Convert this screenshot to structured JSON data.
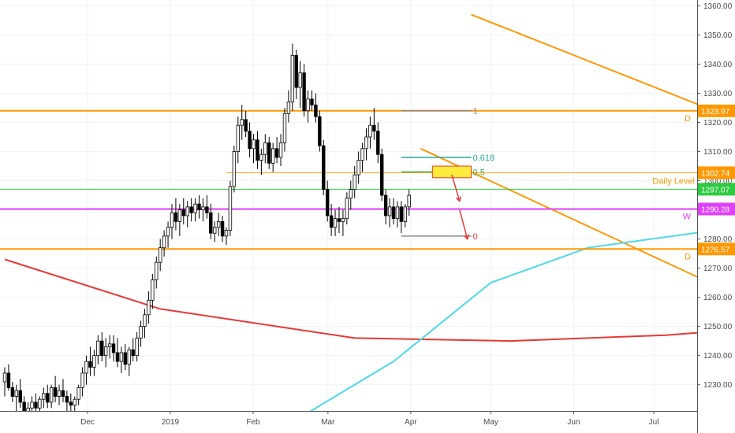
{
  "chart_data": {
    "type": "candlestick",
    "y_axis": {
      "range": [
        1221,
        1362
      ],
      "ticks": [
        "1230.00",
        "1240.00",
        "1250.00",
        "1260.00",
        "1270.00",
        "1280.00",
        "1290.00",
        "1300.00",
        "1310.00",
        "1320.00",
        "1330.00",
        "1340.00",
        "1350.00",
        "1360.00"
      ]
    },
    "x_axis": {
      "labels": [
        {
          "text": "Dec",
          "day": 31
        },
        {
          "text": "2019",
          "day": 62
        },
        {
          "text": "Feb",
          "day": 93
        },
        {
          "text": "Mar",
          "day": 121
        },
        {
          "text": "Apr",
          "day": 152
        },
        {
          "text": "May",
          "day": 182
        },
        {
          "text": "Jun",
          "day": 213
        },
        {
          "text": "Jul",
          "day": 243
        }
      ]
    },
    "horizontal_levels": [
      {
        "value": 1323.97,
        "label": "1323.97",
        "color": "#ff9800",
        "tag": "D"
      },
      {
        "value": 1302.74,
        "label": "1302.74",
        "color": "#ff9800",
        "note": "Daily Level"
      },
      {
        "value": 1297.07,
        "label": "1297.07",
        "color": "#2ecc40"
      },
      {
        "value": 1290.28,
        "label": "1290.28",
        "color": "#e040fb",
        "tag": "W"
      },
      {
        "value": 1276.57,
        "label": "1276.57",
        "color": "#ff9800",
        "tag": "D"
      }
    ],
    "fibonacci": [
      {
        "label": "1",
        "value": 1324
      },
      {
        "label": "0.618",
        "value": 1308
      },
      {
        "label": "0.5",
        "value": 1303
      },
      {
        "label": "0",
        "value": 1281
      }
    ],
    "candles": [
      {
        "o": 1231,
        "h": 1236,
        "l": 1226,
        "c": 1234
      },
      {
        "o": 1234,
        "h": 1237,
        "l": 1228,
        "c": 1229
      },
      {
        "o": 1229,
        "h": 1231,
        "l": 1224,
        "c": 1226
      },
      {
        "o": 1226,
        "h": 1230,
        "l": 1221,
        "c": 1228
      },
      {
        "o": 1228,
        "h": 1232,
        "l": 1222,
        "c": 1224
      },
      {
        "o": 1224,
        "h": 1226,
        "l": 1218,
        "c": 1220
      },
      {
        "o": 1220,
        "h": 1224,
        "l": 1216,
        "c": 1222
      },
      {
        "o": 1222,
        "h": 1226,
        "l": 1219,
        "c": 1224
      },
      {
        "o": 1224,
        "h": 1227,
        "l": 1220,
        "c": 1222
      },
      {
        "o": 1222,
        "h": 1226,
        "l": 1219,
        "c": 1225
      },
      {
        "o": 1225,
        "h": 1229,
        "l": 1222,
        "c": 1227
      },
      {
        "o": 1227,
        "h": 1230,
        "l": 1222,
        "c": 1224
      },
      {
        "o": 1224,
        "h": 1230,
        "l": 1222,
        "c": 1229
      },
      {
        "o": 1229,
        "h": 1233,
        "l": 1224,
        "c": 1226
      },
      {
        "o": 1226,
        "h": 1230,
        "l": 1223,
        "c": 1228
      },
      {
        "o": 1228,
        "h": 1232,
        "l": 1224,
        "c": 1226
      },
      {
        "o": 1226,
        "h": 1228,
        "l": 1221,
        "c": 1224
      },
      {
        "o": 1224,
        "h": 1227,
        "l": 1220,
        "c": 1223
      },
      {
        "o": 1223,
        "h": 1226,
        "l": 1220,
        "c": 1225
      },
      {
        "o": 1225,
        "h": 1230,
        "l": 1223,
        "c": 1229
      },
      {
        "o": 1229,
        "h": 1236,
        "l": 1226,
        "c": 1234
      },
      {
        "o": 1234,
        "h": 1240,
        "l": 1230,
        "c": 1238
      },
      {
        "o": 1238,
        "h": 1243,
        "l": 1233,
        "c": 1236
      },
      {
        "o": 1236,
        "h": 1242,
        "l": 1233,
        "c": 1240
      },
      {
        "o": 1240,
        "h": 1247,
        "l": 1237,
        "c": 1245
      },
      {
        "o": 1245,
        "h": 1248,
        "l": 1238,
        "c": 1240
      },
      {
        "o": 1240,
        "h": 1246,
        "l": 1236,
        "c": 1243
      },
      {
        "o": 1243,
        "h": 1247,
        "l": 1239,
        "c": 1244
      },
      {
        "o": 1244,
        "h": 1247,
        "l": 1238,
        "c": 1241
      },
      {
        "o": 1241,
        "h": 1246,
        "l": 1236,
        "c": 1238
      },
      {
        "o": 1238,
        "h": 1243,
        "l": 1234,
        "c": 1241
      },
      {
        "o": 1241,
        "h": 1244,
        "l": 1235,
        "c": 1237
      },
      {
        "o": 1237,
        "h": 1243,
        "l": 1233,
        "c": 1242
      },
      {
        "o": 1242,
        "h": 1246,
        "l": 1238,
        "c": 1240
      },
      {
        "o": 1240,
        "h": 1248,
        "l": 1238,
        "c": 1246
      },
      {
        "o": 1246,
        "h": 1252,
        "l": 1243,
        "c": 1250
      },
      {
        "o": 1250,
        "h": 1256,
        "l": 1246,
        "c": 1254
      },
      {
        "o": 1254,
        "h": 1262,
        "l": 1251,
        "c": 1259
      },
      {
        "o": 1259,
        "h": 1268,
        "l": 1256,
        "c": 1266
      },
      {
        "o": 1266,
        "h": 1274,
        "l": 1263,
        "c": 1272
      },
      {
        "o": 1272,
        "h": 1280,
        "l": 1269,
        "c": 1277
      },
      {
        "o": 1277,
        "h": 1283,
        "l": 1274,
        "c": 1281
      },
      {
        "o": 1281,
        "h": 1286,
        "l": 1277,
        "c": 1284
      },
      {
        "o": 1284,
        "h": 1292,
        "l": 1280,
        "c": 1289
      },
      {
        "o": 1289,
        "h": 1294,
        "l": 1283,
        "c": 1286
      },
      {
        "o": 1286,
        "h": 1292,
        "l": 1281,
        "c": 1290
      },
      {
        "o": 1290,
        "h": 1294,
        "l": 1285,
        "c": 1288
      },
      {
        "o": 1288,
        "h": 1293,
        "l": 1284,
        "c": 1291
      },
      {
        "o": 1291,
        "h": 1294,
        "l": 1286,
        "c": 1289
      },
      {
        "o": 1289,
        "h": 1294,
        "l": 1286,
        "c": 1292
      },
      {
        "o": 1292,
        "h": 1295,
        "l": 1287,
        "c": 1290
      },
      {
        "o": 1290,
        "h": 1294,
        "l": 1286,
        "c": 1291
      },
      {
        "o": 1291,
        "h": 1295,
        "l": 1287,
        "c": 1289
      },
      {
        "o": 1289,
        "h": 1292,
        "l": 1280,
        "c": 1282
      },
      {
        "o": 1282,
        "h": 1286,
        "l": 1279,
        "c": 1284
      },
      {
        "o": 1284,
        "h": 1289,
        "l": 1281,
        "c": 1286
      },
      {
        "o": 1286,
        "h": 1288,
        "l": 1279,
        "c": 1281
      },
      {
        "o": 1281,
        "h": 1284,
        "l": 1278,
        "c": 1283
      },
      {
        "o": 1283,
        "h": 1300,
        "l": 1281,
        "c": 1298
      },
      {
        "o": 1298,
        "h": 1312,
        "l": 1296,
        "c": 1310
      },
      {
        "o": 1310,
        "h": 1322,
        "l": 1306,
        "c": 1319
      },
      {
        "o": 1319,
        "h": 1326,
        "l": 1314,
        "c": 1321
      },
      {
        "o": 1321,
        "h": 1324,
        "l": 1315,
        "c": 1317
      },
      {
        "o": 1317,
        "h": 1320,
        "l": 1308,
        "c": 1311
      },
      {
        "o": 1311,
        "h": 1316,
        "l": 1306,
        "c": 1314
      },
      {
        "o": 1314,
        "h": 1317,
        "l": 1304,
        "c": 1307
      },
      {
        "o": 1307,
        "h": 1311,
        "l": 1302,
        "c": 1309
      },
      {
        "o": 1309,
        "h": 1316,
        "l": 1306,
        "c": 1313
      },
      {
        "o": 1313,
        "h": 1315,
        "l": 1304,
        "c": 1306
      },
      {
        "o": 1306,
        "h": 1313,
        "l": 1303,
        "c": 1311
      },
      {
        "o": 1311,
        "h": 1315,
        "l": 1306,
        "c": 1308
      },
      {
        "o": 1308,
        "h": 1316,
        "l": 1305,
        "c": 1313
      },
      {
        "o": 1313,
        "h": 1325,
        "l": 1310,
        "c": 1323
      },
      {
        "o": 1323,
        "h": 1331,
        "l": 1320,
        "c": 1327
      },
      {
        "o": 1327,
        "h": 1347,
        "l": 1324,
        "c": 1343
      },
      {
        "o": 1343,
        "h": 1345,
        "l": 1328,
        "c": 1332
      },
      {
        "o": 1332,
        "h": 1341,
        "l": 1325,
        "c": 1337
      },
      {
        "o": 1337,
        "h": 1340,
        "l": 1322,
        "c": 1324
      },
      {
        "o": 1324,
        "h": 1331,
        "l": 1320,
        "c": 1328
      },
      {
        "o": 1328,
        "h": 1331,
        "l": 1324,
        "c": 1326
      },
      {
        "o": 1326,
        "h": 1330,
        "l": 1320,
        "c": 1322
      },
      {
        "o": 1322,
        "h": 1324,
        "l": 1310,
        "c": 1312
      },
      {
        "o": 1312,
        "h": 1314,
        "l": 1295,
        "c": 1297
      },
      {
        "o": 1297,
        "h": 1300,
        "l": 1286,
        "c": 1288
      },
      {
        "o": 1288,
        "h": 1292,
        "l": 1281,
        "c": 1284
      },
      {
        "o": 1284,
        "h": 1290,
        "l": 1281,
        "c": 1287
      },
      {
        "o": 1287,
        "h": 1291,
        "l": 1282,
        "c": 1286
      },
      {
        "o": 1286,
        "h": 1290,
        "l": 1281,
        "c": 1287
      },
      {
        "o": 1287,
        "h": 1296,
        "l": 1285,
        "c": 1294
      },
      {
        "o": 1294,
        "h": 1300,
        "l": 1290,
        "c": 1297
      },
      {
        "o": 1297,
        "h": 1305,
        "l": 1294,
        "c": 1302
      },
      {
        "o": 1302,
        "h": 1310,
        "l": 1299,
        "c": 1307
      },
      {
        "o": 1307,
        "h": 1313,
        "l": 1303,
        "c": 1311
      },
      {
        "o": 1311,
        "h": 1318,
        "l": 1307,
        "c": 1315
      },
      {
        "o": 1315,
        "h": 1322,
        "l": 1311,
        "c": 1319
      },
      {
        "o": 1319,
        "h": 1325,
        "l": 1314,
        "c": 1317
      },
      {
        "o": 1317,
        "h": 1320,
        "l": 1306,
        "c": 1309
      },
      {
        "o": 1309,
        "h": 1311,
        "l": 1293,
        "c": 1295
      },
      {
        "o": 1295,
        "h": 1297,
        "l": 1285,
        "c": 1288
      },
      {
        "o": 1288,
        "h": 1294,
        "l": 1284,
        "c": 1291
      },
      {
        "o": 1291,
        "h": 1294,
        "l": 1285,
        "c": 1287
      },
      {
        "o": 1287,
        "h": 1293,
        "l": 1284,
        "c": 1291
      },
      {
        "o": 1291,
        "h": 1293,
        "l": 1282,
        "c": 1286
      },
      {
        "o": 1286,
        "h": 1292,
        "l": 1284,
        "c": 1291
      },
      {
        "o": 1291,
        "h": 1297,
        "l": 1288,
        "c": 1295
      }
    ],
    "moving_averages": [
      {
        "color": "#e53935",
        "points": [
          [
            0,
            1273
          ],
          [
            40,
            1256
          ],
          [
            90,
            1246
          ],
          [
            130,
            1245
          ],
          [
            170,
            1247
          ],
          [
            190,
            1249
          ]
        ]
      },
      {
        "color": "#4dd9e8",
        "points": [
          [
            75,
            1218
          ],
          [
            100,
            1238
          ],
          [
            125,
            1265
          ],
          [
            150,
            1277
          ],
          [
            188,
            1284
          ]
        ]
      }
    ],
    "trendlines": [
      {
        "color": "#ff9800",
        "points": [
          [
            120,
            1357
          ],
          [
            260,
            1283
          ]
        ]
      },
      {
        "color": "#ff9800",
        "points": [
          [
            107,
            1311
          ],
          [
            225,
            1238
          ]
        ]
      }
    ],
    "annotations": {
      "daily_level": "Daily Level"
    }
  }
}
